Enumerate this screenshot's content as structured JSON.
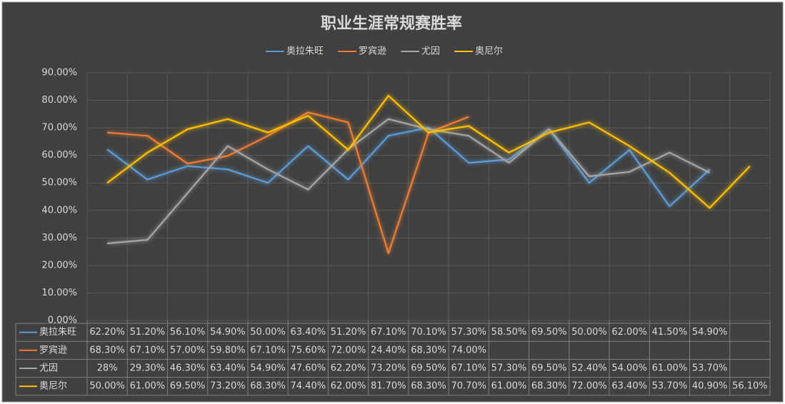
{
  "chart_data": {
    "type": "line",
    "title": "职业生涯常规赛胜率",
    "categories": [
      null,
      null,
      null,
      null,
      null,
      null,
      null,
      null,
      null,
      null,
      null,
      null,
      null,
      null,
      null,
      null,
      null
    ],
    "series": [
      {
        "name": "奥拉朱旺",
        "color": "#5b9bd5",
        "values": [
          62.2,
          51.2,
          56.1,
          54.9,
          50.0,
          63.4,
          51.2,
          67.1,
          70.1,
          57.3,
          58.5,
          69.5,
          50.0,
          62.0,
          41.5,
          54.9,
          null
        ],
        "value_labels": [
          "62.20%",
          "51.20%",
          "56.10%",
          "54.90%",
          "50.00%",
          "63.40%",
          "51.20%",
          "67.10%",
          "70.10%",
          "57.30%",
          "58.50%",
          "69.50%",
          "50.00%",
          "62.00%",
          "41.50%",
          "54.90%",
          null
        ]
      },
      {
        "name": "罗宾逊",
        "color": "#ed7d31",
        "values": [
          68.3,
          67.1,
          57.0,
          59.8,
          67.1,
          75.6,
          72.0,
          24.4,
          68.3,
          74.0,
          null,
          null,
          null,
          null,
          null,
          null,
          null
        ],
        "value_labels": [
          "68.30%",
          "67.10%",
          "57.00%",
          "59.80%",
          "67.10%",
          "75.60%",
          "72.00%",
          "24.40%",
          "68.30%",
          "74.00%",
          null,
          null,
          null,
          null,
          null,
          null,
          null
        ]
      },
      {
        "name": "尤因",
        "color": "#a5a5a5",
        "values": [
          28,
          29.3,
          46.3,
          63.4,
          54.9,
          47.6,
          62.2,
          73.2,
          69.5,
          67.1,
          57.3,
          69.5,
          52.4,
          54.0,
          61.0,
          53.7,
          null
        ],
        "value_labels": [
          "28%",
          "29.30%",
          "46.30%",
          "63.40%",
          "54.90%",
          "47.60%",
          "62.20%",
          "73.20%",
          "69.50%",
          "67.10%",
          "57.30%",
          "69.50%",
          "52.40%",
          "54.00%",
          "61.00%",
          "53.70%",
          null
        ]
      },
      {
        "name": "奥尼尔",
        "color": "#ffc000",
        "values": [
          50.0,
          61.0,
          69.5,
          73.2,
          68.3,
          74.4,
          62.0,
          81.7,
          68.3,
          70.7,
          61.0,
          68.3,
          72.0,
          63.4,
          53.7,
          40.9,
          56.1
        ],
        "value_labels": [
          "50.00%",
          "61.00%",
          "69.50%",
          "73.20%",
          "68.30%",
          "74.40%",
          "62.00%",
          "81.70%",
          "68.30%",
          "70.70%",
          "61.00%",
          "68.30%",
          "72.00%",
          "63.40%",
          "53.70%",
          "40.90%",
          "56.10%"
        ]
      }
    ],
    "ylim": [
      0,
      90
    ],
    "yticks": [
      {
        "value": 0,
        "label": "0.00%"
      },
      {
        "value": 10,
        "label": "10.00%"
      },
      {
        "value": 20,
        "label": "20.00%"
      },
      {
        "value": 30,
        "label": "30.00%"
      },
      {
        "value": 40,
        "label": "40.00%"
      },
      {
        "value": 50,
        "label": "50.00%"
      },
      {
        "value": 60,
        "label": "60.00%"
      },
      {
        "value": 70,
        "label": "70.00%"
      },
      {
        "value": 80,
        "label": "80.00%"
      },
      {
        "value": 90,
        "label": "90.00%"
      }
    ],
    "grid": true
  }
}
